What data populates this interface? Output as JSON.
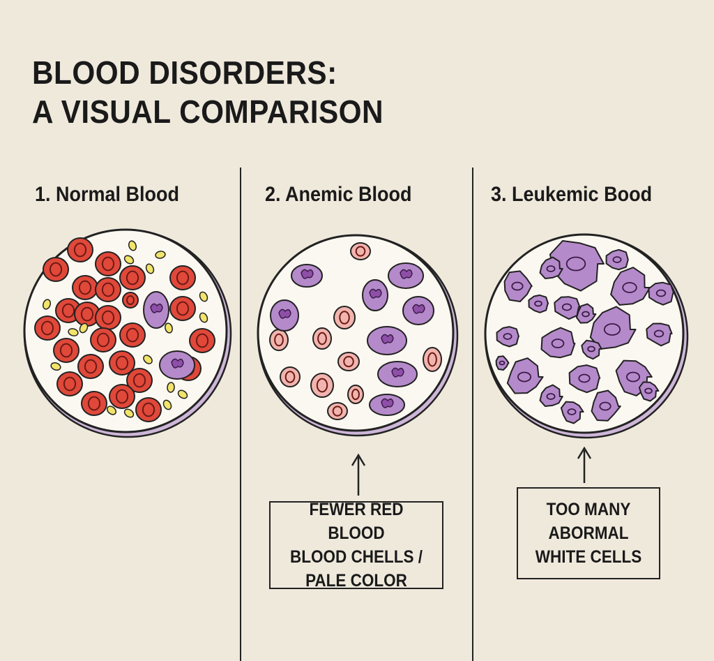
{
  "title": {
    "line1": "BLOOD DISORDERS:",
    "line2": "A VISUAL COMPARISON"
  },
  "panels": [
    {
      "heading": "1. Normal Blood"
    },
    {
      "heading": "2. Anemic Blood",
      "note": {
        "lines": [
          "FEWER RED BLOOD",
          "BLOOD CHELLS /",
          "PALE COLOR"
        ]
      }
    },
    {
      "heading": "3. Leukemic Bood",
      "note": {
        "lines": [
          "TOO MANY",
          "ABORMAL",
          "WHITE CELLS"
        ]
      }
    }
  ],
  "colors": {
    "background": "#efe9dc",
    "red_cell": "#e0483a",
    "pale_cell": "#f2b4ae",
    "white_cell": "#b58acb",
    "platelet": "#f1e46a",
    "outline": "#222222"
  }
}
